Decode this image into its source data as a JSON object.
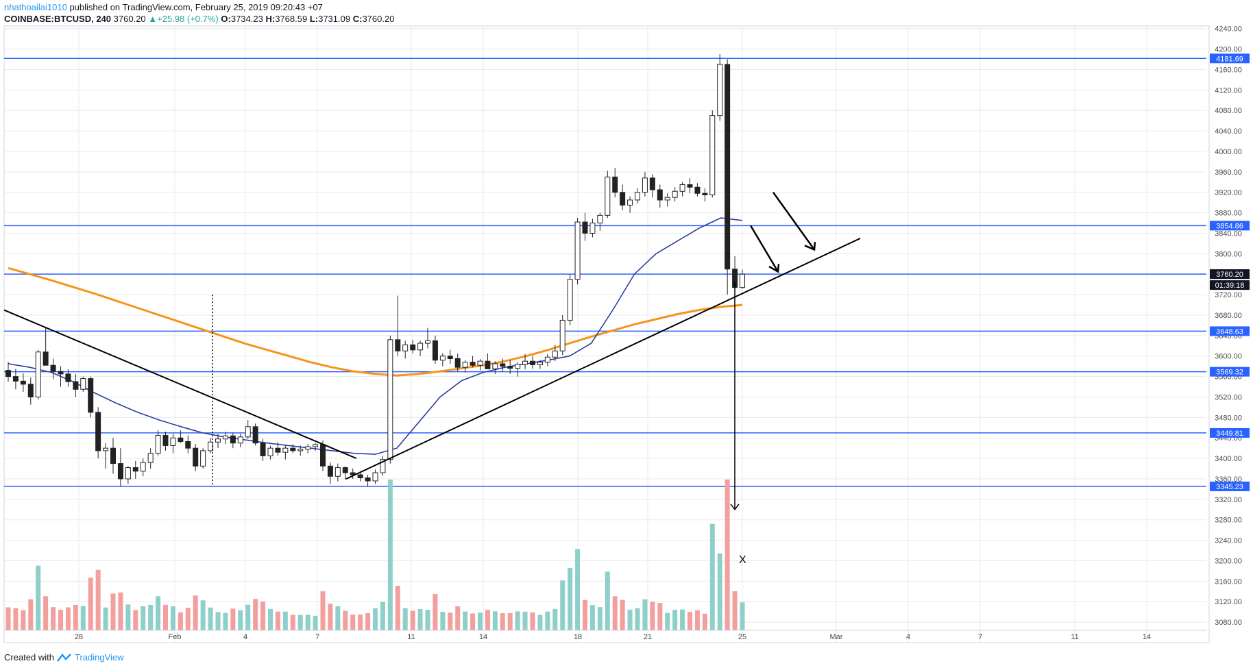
{
  "header": {
    "author": "nhathoailai1010",
    "published_text": "published on TradingView.com, February 25, 2019 09:20:43 +07",
    "symbol": "COINBASE:BTCUSD, 240",
    "last": "3760.20",
    "change": "▲+25.98 (+0.7%)",
    "o_label": "O:",
    "o_value": "3734.23",
    "h_label": "H:",
    "h_value": "3768.59",
    "l_label": "L:",
    "l_value": "3731.09",
    "c_label": "C:",
    "c_value": "3760.20"
  },
  "footer": {
    "created_with": "Created with",
    "brand": "TradingView"
  },
  "colors": {
    "up": "#26a69a",
    "down": "#ef5350",
    "volume_up": "#8fcfc9",
    "volume_down": "#f29f9d",
    "hline": "#2962ff",
    "ma_blue": "#2b3f9e",
    "ma_orange": "#f7931a",
    "grid": "#e8eaed",
    "axis_text": "#4a4a4a"
  },
  "chart_data": {
    "type": "candlestick",
    "symbol": "COINBASE:BTCUSD",
    "timeframe": "240",
    "ylim": [
      3040,
      4245
    ],
    "y_ticks": [
      "4240.00",
      "4200.00",
      "4160.00",
      "4120.00",
      "4080.00",
      "4040.00",
      "4000.00",
      "3960.00",
      "3920.00",
      "3880.00",
      "3840.00",
      "3800.00",
      "3760.00",
      "3720.00",
      "3680.00",
      "3640.00",
      "3600.00",
      "3560.00",
      "3520.00",
      "3480.00",
      "3440.00",
      "3400.00",
      "3360.00",
      "3320.00",
      "3280.00",
      "3240.00",
      "3200.00",
      "3160.00",
      "3120.00",
      "3080.00"
    ],
    "x_ticks": [
      "28",
      "Feb",
      "4",
      "7",
      "11",
      "14",
      "18",
      "21",
      "25",
      "Mar",
      "4",
      "7",
      "11",
      "14"
    ],
    "horizontal_levels": [
      "4181.69",
      "3854.86",
      "3760.16",
      "3648.63",
      "3569.32",
      "3449.81",
      "3345.23"
    ],
    "price_labels": {
      "last_price": "3760.20",
      "countdown": "01:39:18"
    },
    "annotations": [
      {
        "text": "X"
      }
    ],
    "series": [
      {
        "kind": "ohlc",
        "values": [
          [
            3572,
            3589,
            3550,
            3560
          ],
          [
            3560,
            3575,
            3535,
            3551
          ],
          [
            3551,
            3566,
            3530,
            3545
          ],
          [
            3545,
            3558,
            3505,
            3520
          ],
          [
            3520,
            3612,
            3515,
            3608
          ],
          [
            3608,
            3655,
            3590,
            3582
          ],
          [
            3582,
            3595,
            3555,
            3570
          ],
          [
            3570,
            3580,
            3540,
            3565
          ],
          [
            3565,
            3574,
            3540,
            3550
          ],
          [
            3550,
            3565,
            3520,
            3535
          ],
          [
            3535,
            3560,
            3530,
            3556
          ],
          [
            3556,
            3560,
            3480,
            3490
          ],
          [
            3490,
            3500,
            3400,
            3415
          ],
          [
            3415,
            3430,
            3380,
            3420
          ],
          [
            3420,
            3440,
            3370,
            3390
          ],
          [
            3390,
            3420,
            3345,
            3360
          ],
          [
            3360,
            3385,
            3350,
            3382
          ],
          [
            3382,
            3395,
            3360,
            3375
          ],
          [
            3375,
            3400,
            3365,
            3392
          ],
          [
            3392,
            3420,
            3380,
            3410
          ],
          [
            3410,
            3455,
            3405,
            3445
          ],
          [
            3445,
            3452,
            3415,
            3425
          ],
          [
            3425,
            3448,
            3410,
            3440
          ],
          [
            3440,
            3455,
            3430,
            3433
          ],
          [
            3433,
            3445,
            3410,
            3420
          ],
          [
            3420,
            3428,
            3375,
            3385
          ],
          [
            3385,
            3420,
            3380,
            3415
          ],
          [
            3415,
            3440,
            3410,
            3432
          ],
          [
            3432,
            3448,
            3420,
            3438
          ],
          [
            3438,
            3452,
            3428,
            3444
          ],
          [
            3444,
            3450,
            3420,
            3430
          ],
          [
            3430,
            3448,
            3422,
            3442
          ],
          [
            3442,
            3475,
            3438,
            3462
          ],
          [
            3462,
            3468,
            3425,
            3430
          ],
          [
            3430,
            3438,
            3395,
            3405
          ],
          [
            3405,
            3425,
            3398,
            3420
          ],
          [
            3420,
            3432,
            3405,
            3412
          ],
          [
            3412,
            3425,
            3398,
            3420
          ],
          [
            3420,
            3428,
            3410,
            3415
          ],
          [
            3415,
            3425,
            3405,
            3418
          ],
          [
            3418,
            3428,
            3410,
            3423
          ],
          [
            3423,
            3430,
            3415,
            3427
          ],
          [
            3427,
            3435,
            3375,
            3385
          ],
          [
            3385,
            3392,
            3350,
            3365
          ],
          [
            3365,
            3390,
            3355,
            3382
          ],
          [
            3382,
            3385,
            3358,
            3372
          ],
          [
            3372,
            3380,
            3360,
            3368
          ],
          [
            3368,
            3372,
            3355,
            3362
          ],
          [
            3362,
            3368,
            3345,
            3356
          ],
          [
            3356,
            3378,
            3350,
            3372
          ],
          [
            3372,
            3405,
            3366,
            3398
          ],
          [
            3398,
            3640,
            3390,
            3632
          ],
          [
            3632,
            3718,
            3600,
            3610
          ],
          [
            3610,
            3630,
            3595,
            3622
          ],
          [
            3622,
            3632,
            3605,
            3612
          ],
          [
            3612,
            3630,
            3600,
            3625
          ],
          [
            3625,
            3655,
            3615,
            3630
          ],
          [
            3630,
            3640,
            3585,
            3592
          ],
          [
            3592,
            3606,
            3580,
            3600
          ],
          [
            3600,
            3612,
            3585,
            3595
          ],
          [
            3595,
            3605,
            3570,
            3578
          ],
          [
            3578,
            3592,
            3568,
            3588
          ],
          [
            3588,
            3600,
            3578,
            3582
          ],
          [
            3582,
            3594,
            3572,
            3590
          ],
          [
            3590,
            3605,
            3582,
            3575
          ],
          [
            3575,
            3590,
            3565,
            3585
          ],
          [
            3585,
            3595,
            3570,
            3580
          ],
          [
            3580,
            3592,
            3565,
            3576
          ],
          [
            3576,
            3588,
            3560,
            3584
          ],
          [
            3584,
            3604,
            3574,
            3590
          ],
          [
            3590,
            3600,
            3575,
            3583
          ],
          [
            3583,
            3592,
            3575,
            3588
          ],
          [
            3588,
            3604,
            3580,
            3598
          ],
          [
            3598,
            3622,
            3590,
            3610
          ],
          [
            3610,
            3680,
            3602,
            3670
          ],
          [
            3670,
            3760,
            3660,
            3750
          ],
          [
            3750,
            3870,
            3740,
            3862
          ],
          [
            3862,
            3880,
            3825,
            3840
          ],
          [
            3840,
            3868,
            3832,
            3860
          ],
          [
            3860,
            3880,
            3845,
            3875
          ],
          [
            3875,
            3962,
            3870,
            3950
          ],
          [
            3950,
            3968,
            3910,
            3920
          ],
          [
            3920,
            3935,
            3885,
            3895
          ],
          [
            3895,
            3912,
            3880,
            3905
          ],
          [
            3905,
            3928,
            3898,
            3920
          ],
          [
            3920,
            3960,
            3912,
            3948
          ],
          [
            3948,
            3955,
            3910,
            3925
          ],
          [
            3925,
            3935,
            3890,
            3905
          ],
          [
            3905,
            3918,
            3892,
            3910
          ],
          [
            3910,
            3930,
            3902,
            3922
          ],
          [
            3922,
            3940,
            3912,
            3935
          ],
          [
            3935,
            3948,
            3918,
            3930
          ],
          [
            3930,
            3938,
            3912,
            3918
          ],
          [
            3918,
            3928,
            3902,
            3915
          ],
          [
            3915,
            4080,
            3910,
            4070
          ],
          [
            4070,
            4190,
            4060,
            4170
          ],
          [
            4170,
            4180,
            3720,
            3770
          ],
          [
            3770,
            3795,
            3725,
            3734
          ],
          [
            3734,
            3769,
            3731,
            3760
          ]
        ]
      },
      {
        "kind": "ma_orange",
        "values": [
          3772,
          3760,
          3748,
          3735,
          3722,
          3708,
          3694,
          3680,
          3666,
          3652,
          3638,
          3624,
          3612,
          3600,
          3588,
          3578,
          3570,
          3565,
          3562,
          3565,
          3570,
          3576,
          3582,
          3590,
          3600,
          3612,
          3625,
          3638,
          3650,
          3662,
          3672,
          3682,
          3690,
          3696,
          3700
        ]
      },
      {
        "kind": "ma_blue",
        "values": [
          3585,
          3578,
          3568,
          3550,
          3528,
          3508,
          3490,
          3475,
          3462,
          3450,
          3442,
          3436,
          3430,
          3425,
          3420,
          3415,
          3410,
          3408,
          3420,
          3470,
          3520,
          3552,
          3568,
          3578,
          3585,
          3592,
          3600,
          3625,
          3690,
          3760,
          3800,
          3825,
          3850,
          3870,
          3865
        ]
      }
    ]
  }
}
